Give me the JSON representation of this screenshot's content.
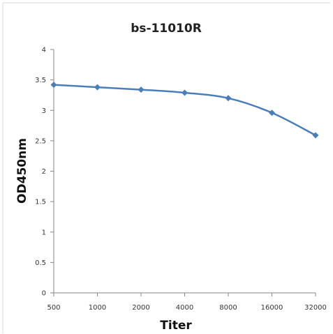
{
  "chart_data": {
    "type": "line",
    "title": "bs-11010R",
    "xlabel": "Titer",
    "ylabel": "OD450nm",
    "categories": [
      "500",
      "1000",
      "2000",
      "4000",
      "8000",
      "16000",
      "32000"
    ],
    "series": [
      {
        "values": [
          3.42,
          3.38,
          3.34,
          3.29,
          3.2,
          2.96,
          2.59
        ]
      }
    ],
    "ylim": [
      0,
      4
    ],
    "yticks": [
      "0",
      "0.5",
      "1",
      "1.5",
      "2",
      "2.5",
      "3",
      "3.5",
      "4"
    ],
    "grid": false,
    "legend": "none",
    "colors": {
      "series": "#4a7ebb",
      "axis": "#868686",
      "frame": "#d9d9d9"
    }
  }
}
